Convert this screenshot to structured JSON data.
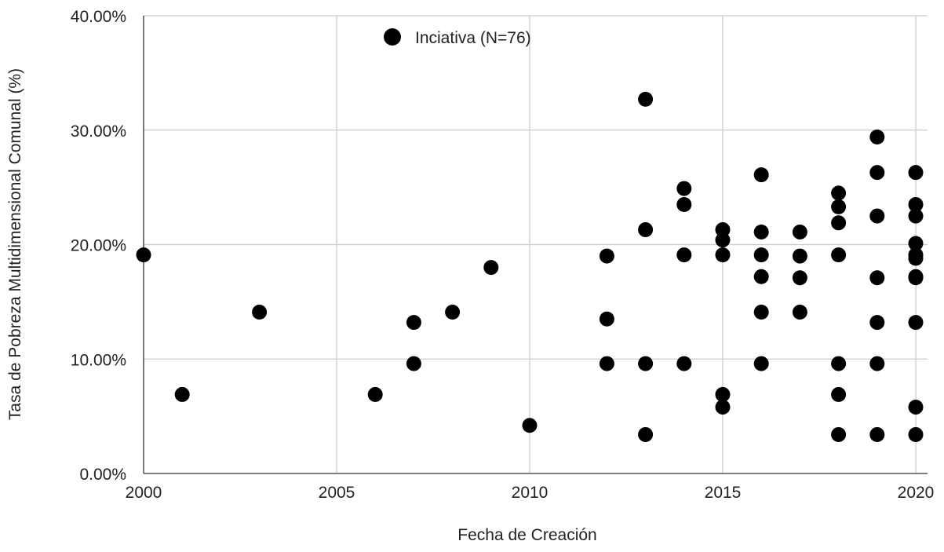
{
  "chart_data": {
    "type": "scatter",
    "title": "",
    "xlabel": "Fecha de Creación",
    "ylabel": "Tasa de Pobreza Multidimensional Comunal (%)",
    "xlim": [
      2000,
      2020
    ],
    "ylim": [
      0,
      40
    ],
    "x_ticks": [
      2000,
      2005,
      2010,
      2015,
      2020
    ],
    "x_tick_labels": [
      "2000",
      "2005",
      "2010",
      "2015",
      "2020"
    ],
    "y_ticks": [
      0,
      10,
      20,
      30,
      40
    ],
    "y_tick_labels": [
      "0.00%",
      "10.00%",
      "20.00%",
      "30.00%",
      "40.00%"
    ],
    "grid": true,
    "legend_position": "top-center",
    "series": [
      {
        "name": "Inciativa (N=76)",
        "color": "#000000",
        "points": [
          [
            2000,
            19.1
          ],
          [
            2001,
            6.9
          ],
          [
            2003,
            14.1
          ],
          [
            2006,
            6.9
          ],
          [
            2007,
            13.2
          ],
          [
            2007,
            9.6
          ],
          [
            2008,
            14.1
          ],
          [
            2009,
            18.0
          ],
          [
            2010,
            4.2
          ],
          [
            2012,
            19.0
          ],
          [
            2012,
            13.5
          ],
          [
            2012,
            9.6
          ],
          [
            2013,
            32.7
          ],
          [
            2013,
            21.3
          ],
          [
            2013,
            9.6
          ],
          [
            2013,
            3.4
          ],
          [
            2014,
            24.9
          ],
          [
            2014,
            23.5
          ],
          [
            2014,
            19.1
          ],
          [
            2014,
            9.6
          ],
          [
            2015,
            21.3
          ],
          [
            2015,
            20.4
          ],
          [
            2015,
            19.1
          ],
          [
            2015,
            6.9
          ],
          [
            2015,
            5.8
          ],
          [
            2016,
            26.1
          ],
          [
            2016,
            21.1
          ],
          [
            2016,
            19.1
          ],
          [
            2016,
            17.2
          ],
          [
            2016,
            14.1
          ],
          [
            2016,
            9.6
          ],
          [
            2017,
            21.1
          ],
          [
            2017,
            19.0
          ],
          [
            2017,
            17.1
          ],
          [
            2017,
            14.1
          ],
          [
            2018,
            24.5
          ],
          [
            2018,
            23.3
          ],
          [
            2018,
            21.9
          ],
          [
            2018,
            19.1
          ],
          [
            2018,
            9.6
          ],
          [
            2018,
            6.9
          ],
          [
            2018,
            3.4
          ],
          [
            2019,
            29.4
          ],
          [
            2019,
            26.3
          ],
          [
            2019,
            22.5
          ],
          [
            2019,
            17.1
          ],
          [
            2019,
            13.2
          ],
          [
            2019,
            9.6
          ],
          [
            2019,
            3.4
          ],
          [
            2020,
            26.3
          ],
          [
            2020,
            23.5
          ],
          [
            2020,
            22.5
          ],
          [
            2020,
            20.1
          ],
          [
            2020,
            19.1
          ],
          [
            2020,
            18.8
          ],
          [
            2020,
            17.2
          ],
          [
            2020,
            17.1
          ],
          [
            2020,
            13.2
          ],
          [
            2020,
            5.8
          ],
          [
            2020,
            3.4
          ]
        ]
      }
    ]
  }
}
